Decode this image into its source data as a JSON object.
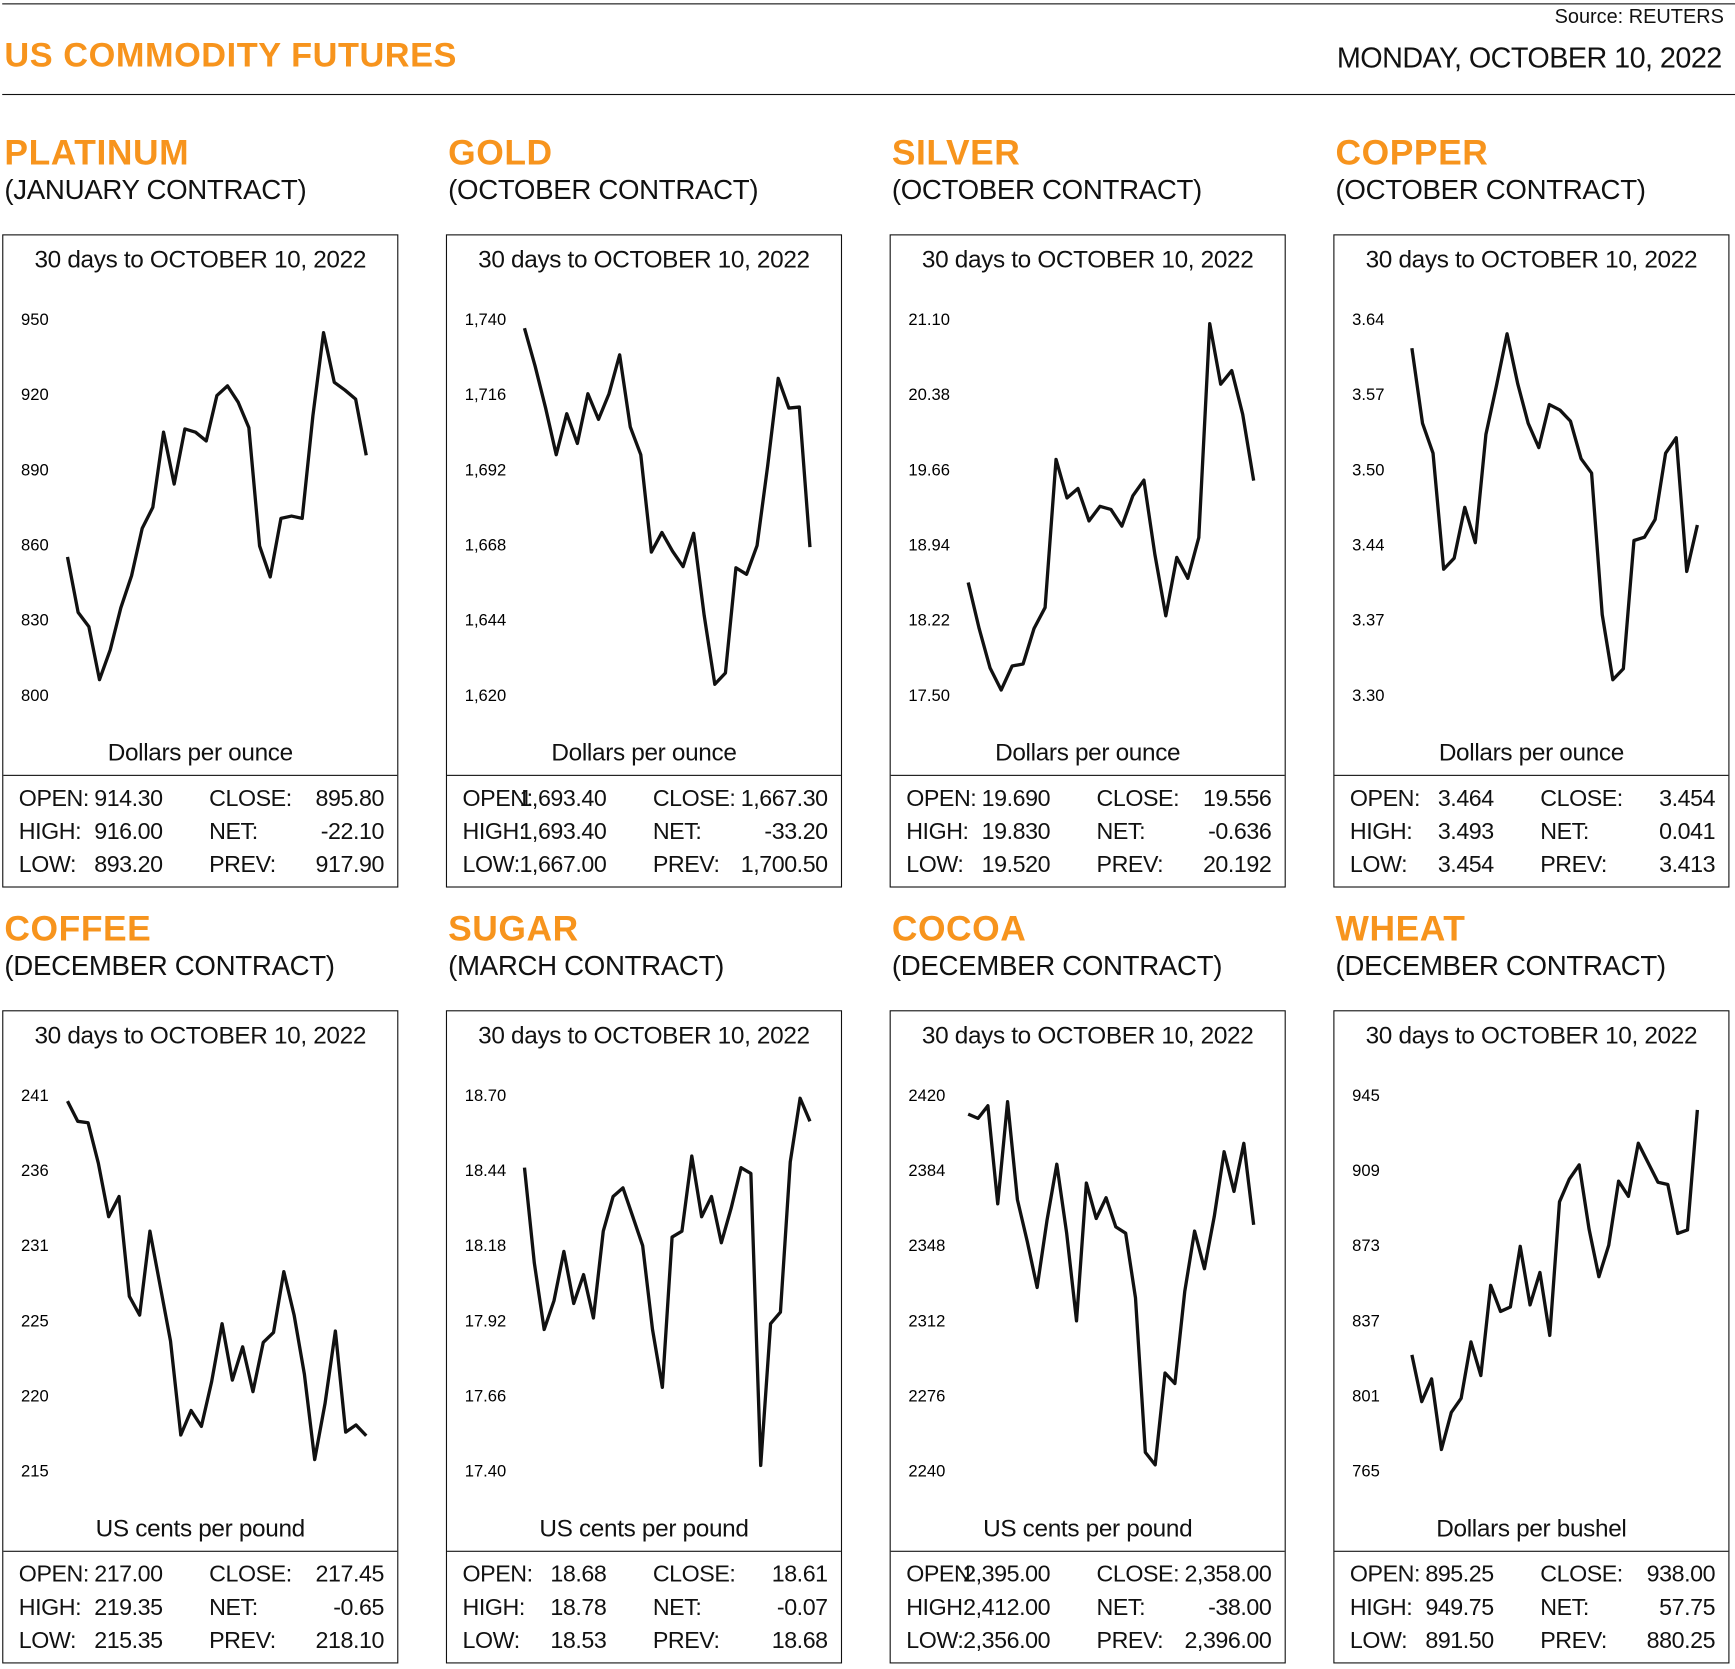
{
  "header": {
    "title": "US COMMODITY FUTURES",
    "source": "Source: REUTERS",
    "date": "MONDAY, OCTOBER 10, 2022"
  },
  "colors": {
    "accent": "#f7941d",
    "line": "#111111"
  },
  "stat_labels": {
    "open": "OPEN:",
    "high": "HIGH:",
    "low": "LOW:",
    "close": "CLOSE:",
    "net": "NET:",
    "prev": "PREV:"
  },
  "panels": [
    {
      "name": "PLATINUM",
      "contract": "(JANUARY CONTRACT)",
      "subtitle": "30 days to OCTOBER 10, 2022",
      "unit": "Dollars per ounce",
      "stats": {
        "open": "914.30",
        "high": "916.00",
        "low": "893.20",
        "close": "895.80",
        "net": "-22.10",
        "prev": "917.90"
      }
    },
    {
      "name": "GOLD",
      "contract": "(OCTOBER CONTRACT)",
      "subtitle": "30 days to OCTOBER 10, 2022",
      "unit": "Dollars per ounce",
      "stats": {
        "open": "1,693.40",
        "high": "1,693.40",
        "low": "1,667.00",
        "close": "1,667.30",
        "net": "-33.20",
        "prev": "1,700.50"
      }
    },
    {
      "name": "SILVER",
      "contract": "(OCTOBER CONTRACT)",
      "subtitle": "30 days to OCTOBER 10, 2022",
      "unit": "Dollars per ounce",
      "stats": {
        "open": "19.690",
        "high": "19.830",
        "low": "19.520",
        "close": "19.556",
        "net": "-0.636",
        "prev": "20.192"
      }
    },
    {
      "name": "COPPER",
      "contract": "(OCTOBER CONTRACT)",
      "subtitle": "30 days to OCTOBER 10, 2022",
      "unit": "Dollars per ounce",
      "stats": {
        "open": "3.464",
        "high": "3.493",
        "low": "3.454",
        "close": "3.454",
        "net": "0.041",
        "prev": "3.413"
      }
    },
    {
      "name": "COFFEE",
      "contract": "(DECEMBER CONTRACT)",
      "subtitle": "30 days to OCTOBER 10, 2022",
      "unit": "US cents per pound",
      "stats": {
        "open": "217.00",
        "high": "219.35",
        "low": "215.35",
        "close": "217.45",
        "net": "-0.65",
        "prev": "218.10"
      }
    },
    {
      "name": "SUGAR",
      "contract": "(MARCH CONTRACT)",
      "subtitle": "30 days to OCTOBER 10, 2022",
      "unit": "US cents per pound",
      "stats": {
        "open": "18.68",
        "high": "18.78",
        "low": "18.53",
        "close": "18.61",
        "net": "-0.07",
        "prev": "18.68"
      }
    },
    {
      "name": "COCOA",
      "contract": "(DECEMBER CONTRACT)",
      "subtitle": "30 days to OCTOBER 10, 2022",
      "unit": "US cents per pound",
      "stats": {
        "open": "2,395.00",
        "high": "2,412.00",
        "low": "2,356.00",
        "close": "2,358.00",
        "net": "-38.00",
        "prev": "2,396.00"
      }
    },
    {
      "name": "WHEAT",
      "contract": "(DECEMBER CONTRACT)",
      "subtitle": "30 days to OCTOBER 10, 2022",
      "unit": "Dollars per bushel",
      "stats": {
        "open": "895.25",
        "high": "949.75",
        "low": "891.50",
        "close": "938.00",
        "net": "57.75",
        "prev": "880.25"
      }
    }
  ],
  "chart_data": [
    {
      "type": "line",
      "title": "PLATINUM",
      "ylabel": "Dollars per ounce",
      "ylim": [
        800,
        950
      ],
      "grid": false,
      "yticks": [
        "800",
        "830",
        "860",
        "890",
        "920",
        "950"
      ],
      "values": [
        855.2,
        833.1,
        827.4,
        806.2,
        818.1,
        834.9,
        847.7,
        866.6,
        875.0,
        905.0,
        884.3,
        906.3,
        905.0,
        901.5,
        919.6,
        923.5,
        916.9,
        906.8,
        859.6,
        847.2,
        870.6,
        871.5,
        870.6,
        911.6,
        944.7,
        924.9,
        921.8,
        918.2,
        895.8
      ]
    },
    {
      "type": "line",
      "title": "GOLD",
      "ylabel": "Dollars per ounce",
      "ylim": [
        1620,
        1740
      ],
      "grid": false,
      "yticks": [
        "1,620",
        "1,644",
        "1,668",
        "1,692",
        "1,716",
        "1,740"
      ],
      "values": [
        1737.2,
        1725.1,
        1711.7,
        1696.8,
        1709.9,
        1700.4,
        1716.3,
        1708.1,
        1716.3,
        1728.7,
        1705.7,
        1696.8,
        1665.7,
        1672.0,
        1666.0,
        1661.1,
        1671.7,
        1645.5,
        1623.5,
        1627.1,
        1660.7,
        1658.6,
        1667.8,
        1693.3,
        1721.2,
        1711.7,
        1712.0,
        1667.3
      ]
    },
    {
      "type": "line",
      "title": "SILVER",
      "ylabel": "Dollars per ounce",
      "ylim": [
        17.5,
        21.1
      ],
      "grid": false,
      "yticks": [
        "17.50",
        "18.22",
        "18.94",
        "19.66",
        "20.38",
        "21.10"
      ],
      "values": [
        18.58,
        18.14,
        17.76,
        17.55,
        17.78,
        17.8,
        18.14,
        18.34,
        19.76,
        19.39,
        19.48,
        19.17,
        19.31,
        19.28,
        19.12,
        19.41,
        19.56,
        18.85,
        18.26,
        18.82,
        18.62,
        19.01,
        21.06,
        20.48,
        20.61,
        20.19,
        19.556
      ]
    },
    {
      "type": "line",
      "title": "COPPER",
      "ylabel": "Dollars per ounce",
      "ylim": [
        3.3,
        3.64
      ],
      "grid": false,
      "yticks": [
        "3.30",
        "3.37",
        "3.44",
        "3.50",
        "3.57",
        "3.64"
      ],
      "values": [
        3.614,
        3.546,
        3.519,
        3.414,
        3.424,
        3.47,
        3.438,
        3.536,
        3.58,
        3.627,
        3.582,
        3.546,
        3.524,
        3.563,
        3.558,
        3.548,
        3.514,
        3.501,
        3.373,
        3.314,
        3.324,
        3.44,
        3.443,
        3.459,
        3.519,
        3.533,
        3.412,
        3.454
      ]
    },
    {
      "type": "line",
      "title": "COFFEE",
      "ylabel": "US cents per pound",
      "ylim": [
        215,
        241
      ],
      "grid": false,
      "yticks": [
        "215",
        "220",
        "225",
        "231",
        "236",
        "241"
      ],
      "values": [
        240.6,
        239.2,
        239.1,
        236.3,
        232.6,
        234.0,
        227.1,
        225.8,
        231.6,
        227.8,
        224.0,
        217.5,
        219.2,
        218.1,
        221.2,
        225.2,
        221.3,
        223.6,
        220.5,
        223.9,
        224.6,
        228.8,
        225.8,
        221.7,
        215.8,
        219.7,
        224.7,
        217.7,
        218.2,
        217.45
      ]
    },
    {
      "type": "line",
      "title": "SUGAR",
      "ylabel": "US cents per pound",
      "ylim": [
        17.4,
        18.7
      ],
      "grid": false,
      "yticks": [
        "17.40",
        "17.66",
        "17.92",
        "18.18",
        "18.44",
        "18.70"
      ],
      "values": [
        18.45,
        18.12,
        17.89,
        17.99,
        18.16,
        17.98,
        18.08,
        17.93,
        18.23,
        18.35,
        18.38,
        18.28,
        18.18,
        17.89,
        17.69,
        18.21,
        18.23,
        18.49,
        18.28,
        18.35,
        18.19,
        18.31,
        18.45,
        18.43,
        17.42,
        17.91,
        17.95,
        18.47,
        18.69,
        18.61
      ]
    },
    {
      "type": "line",
      "title": "COCOA",
      "ylabel": "US cents per pound",
      "ylim": [
        2240,
        2420
      ],
      "grid": false,
      "yticks": [
        "2240",
        "2276",
        "2312",
        "2348",
        "2384",
        "2420"
      ],
      "values": [
        2411,
        2409,
        2415,
        2368,
        2417,
        2370,
        2350,
        2328,
        2360,
        2387,
        2354,
        2312,
        2378,
        2361,
        2371,
        2357,
        2354,
        2323,
        2249,
        2243,
        2287,
        2282,
        2326,
        2355,
        2337,
        2362,
        2393,
        2374,
        2397,
        2358
      ]
    },
    {
      "type": "line",
      "title": "WHEAT",
      "ylabel": "Dollars per bushel",
      "ylim": [
        765,
        945
      ],
      "grid": false,
      "yticks": [
        "765",
        "801",
        "837",
        "873",
        "909",
        "945"
      ],
      "values": [
        820.7,
        798.3,
        809.2,
        775.4,
        793.1,
        799.9,
        826.9,
        810.8,
        854.0,
        841.5,
        843.6,
        872.7,
        844.6,
        860.2,
        830.0,
        894.0,
        904.9,
        911.7,
        881.0,
        858.1,
        873.2,
        903.9,
        896.6,
        922.1,
        912.7,
        903.4,
        902.3,
        878.9,
        880.5,
        938.0
      ]
    }
  ]
}
